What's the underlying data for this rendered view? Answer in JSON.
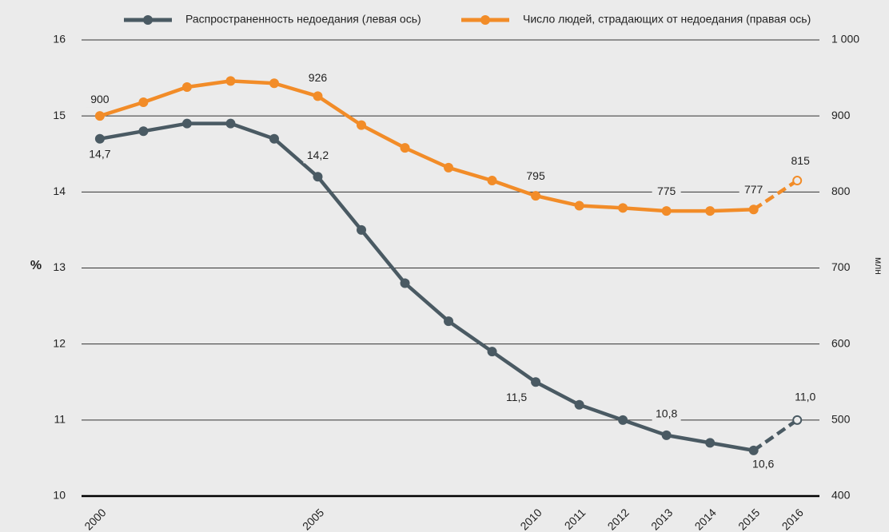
{
  "chart_data": {
    "type": "line",
    "x": [
      2000,
      2001,
      2002,
      2003,
      2004,
      2005,
      2006,
      2007,
      2008,
      2009,
      2010,
      2011,
      2012,
      2013,
      2014,
      2015,
      2016
    ],
    "xlim": [
      1999.58,
      2016.51
    ],
    "xticks": [
      2000,
      2005,
      2010,
      2011,
      2012,
      2013,
      2014,
      2015,
      2016
    ],
    "ylim": [
      10,
      16
    ],
    "yticks": [
      10,
      11,
      12,
      13,
      14,
      15,
      16
    ],
    "y2lim": [
      400,
      1000
    ],
    "y2ticks": [
      400,
      500,
      600,
      700,
      800,
      900,
      {
        "value": 1000,
        "label": "1 000"
      }
    ],
    "ylabel": "%",
    "y2label": "млн",
    "grid": true,
    "legend": "top",
    "dashed_last_segment": true,
    "series": [
      {
        "name": "Распространенность недоедания (левая ось)",
        "color": "#4a5a63",
        "axis": "y",
        "values": [
          14.7,
          14.8,
          14.9,
          14.9,
          14.7,
          14.2,
          13.5,
          12.8,
          12.3,
          11.9,
          11.5,
          11.2,
          11.0,
          10.8,
          10.7,
          10.6,
          11.0
        ],
        "value_labels": [
          "14,7",
          null,
          null,
          null,
          null,
          "14,2",
          null,
          null,
          null,
          null,
          "11,5",
          null,
          null,
          "10,8",
          null,
          "10,6",
          "11,0"
        ]
      },
      {
        "name": "Число людей, страдающих от недоедания (правая ось)",
        "color": "#f28c28",
        "axis": "y2",
        "values": [
          900,
          918,
          938,
          946,
          943,
          926,
          888,
          858,
          832,
          815,
          795,
          782,
          779,
          775,
          775,
          777,
          815
        ],
        "value_labels": [
          "900",
          null,
          null,
          null,
          null,
          "926",
          null,
          null,
          null,
          null,
          "795",
          null,
          null,
          "775",
          null,
          "777",
          "815"
        ]
      }
    ]
  }
}
